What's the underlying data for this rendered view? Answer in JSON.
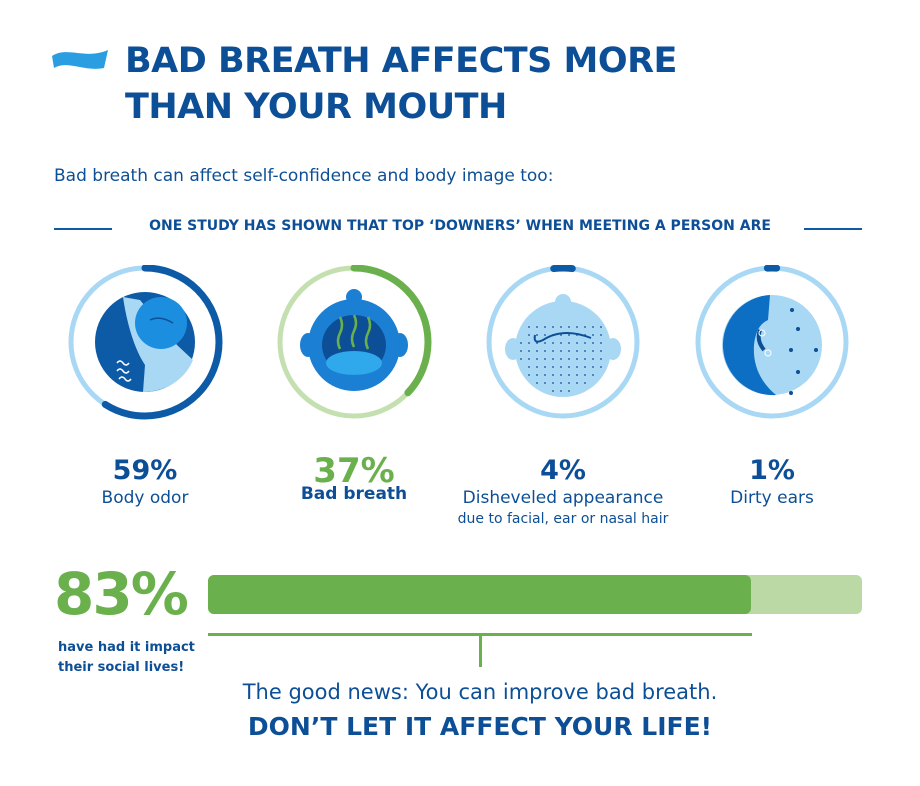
{
  "header": {
    "title_line1": "BAD BREATH AFFECTS MORE",
    "title_line2": "THAN YOUR MOUTH",
    "subtitle": "Bad breath can affect self-confidence and body image too:",
    "study_heading": "ONE STUDY HAS SHOWN THAT TOP ‘DOWNERS’ WHEN MEETING A PERSON ARE"
  },
  "downers": [
    {
      "percent_label": "59%",
      "value": 59,
      "label": "Body odor",
      "icon": "body-odor-icon",
      "color": "#0d5aa6",
      "track": "#a9d8f5"
    },
    {
      "percent_label": "37%",
      "value": 37,
      "label": "Bad breath",
      "icon": "bad-breath-icon",
      "color": "#6ab04c",
      "track": "#c4e0b0"
    },
    {
      "percent_label": "4%",
      "value": 4,
      "label": "Disheveled appearance",
      "note": "due to facial, ear or nasal hair",
      "icon": "disheveled-face-icon",
      "color": "#0d5aa6",
      "track": "#a9d8f5"
    },
    {
      "percent_label": "1%",
      "value": 1,
      "label": "Dirty ears",
      "icon": "dirty-ear-icon",
      "color": "#0d5aa6",
      "track": "#a9d8f5"
    }
  ],
  "impact": {
    "percent_label": "83%",
    "value": 83,
    "note": "have had it impact their social lives!"
  },
  "footer": {
    "good_news": "The good news: You can improve bad breath.",
    "cta": "DON’T LET IT AFFECT YOUR LIFE!"
  }
}
